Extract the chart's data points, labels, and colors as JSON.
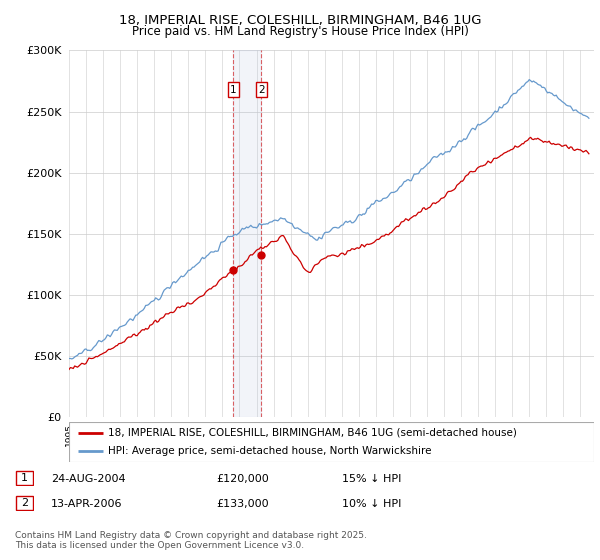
{
  "title1": "18, IMPERIAL RISE, COLESHILL, BIRMINGHAM, B46 1UG",
  "title2": "Price paid vs. HM Land Registry's House Price Index (HPI)",
  "legend_line1": "18, IMPERIAL RISE, COLESHILL, BIRMINGHAM, B46 1UG (semi-detached house)",
  "legend_line2": "HPI: Average price, semi-detached house, North Warwickshire",
  "transaction1_date": "24-AUG-2004",
  "transaction1_price": "£120,000",
  "transaction1_hpi": "15% ↓ HPI",
  "transaction1_year": 2004.65,
  "transaction1_value": 120000,
  "transaction2_date": "13-APR-2006",
  "transaction2_price": "£133,000",
  "transaction2_hpi": "10% ↓ HPI",
  "transaction2_year": 2006.28,
  "transaction2_value": 133000,
  "copyright": "Contains HM Land Registry data © Crown copyright and database right 2025.\nThis data is licensed under the Open Government Licence v3.0.",
  "ylim": [
    0,
    300000
  ],
  "yticks": [
    0,
    50000,
    100000,
    150000,
    200000,
    250000,
    300000
  ],
  "red_color": "#cc0000",
  "blue_color": "#6699cc",
  "span_color": "#aabbdd",
  "vline_color": "#cc0000",
  "grid_color": "#cccccc"
}
